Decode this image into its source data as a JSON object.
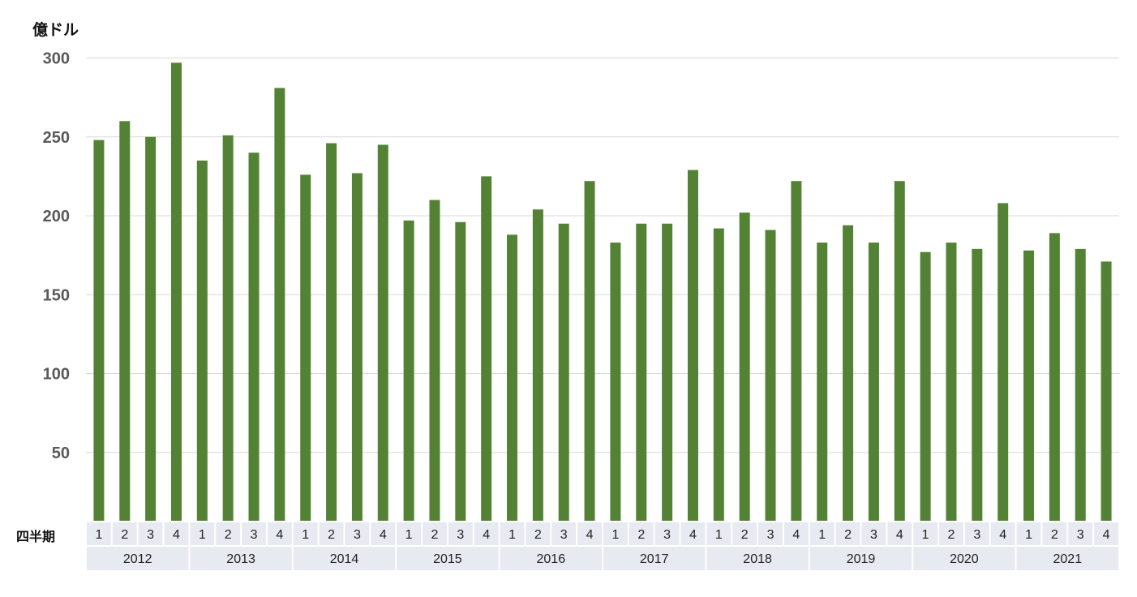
{
  "chart_data": {
    "type": "bar",
    "unit_label": "億ドル",
    "xlabel": "四半期",
    "ylim": [
      0,
      300
    ],
    "yticks": [
      50,
      100,
      150,
      200,
      250,
      300
    ],
    "grid": true,
    "colors": {
      "bar": "#548235",
      "gridline": "#d9d9d9",
      "table_fill": "#e8eaf2"
    },
    "quarters": [
      "1",
      "2",
      "3",
      "4"
    ],
    "years": [
      "2012",
      "2013",
      "2014",
      "2015",
      "2016",
      "2017",
      "2018",
      "2019",
      "2020",
      "2021"
    ],
    "values": [
      248,
      260,
      250,
      297,
      235,
      251,
      240,
      281,
      226,
      246,
      227,
      245,
      197,
      210,
      196,
      225,
      188,
      204,
      195,
      222,
      183,
      195,
      195,
      229,
      192,
      202,
      191,
      222,
      183,
      194,
      183,
      222,
      177,
      183,
      179,
      208,
      178,
      189,
      179,
      171
    ]
  }
}
